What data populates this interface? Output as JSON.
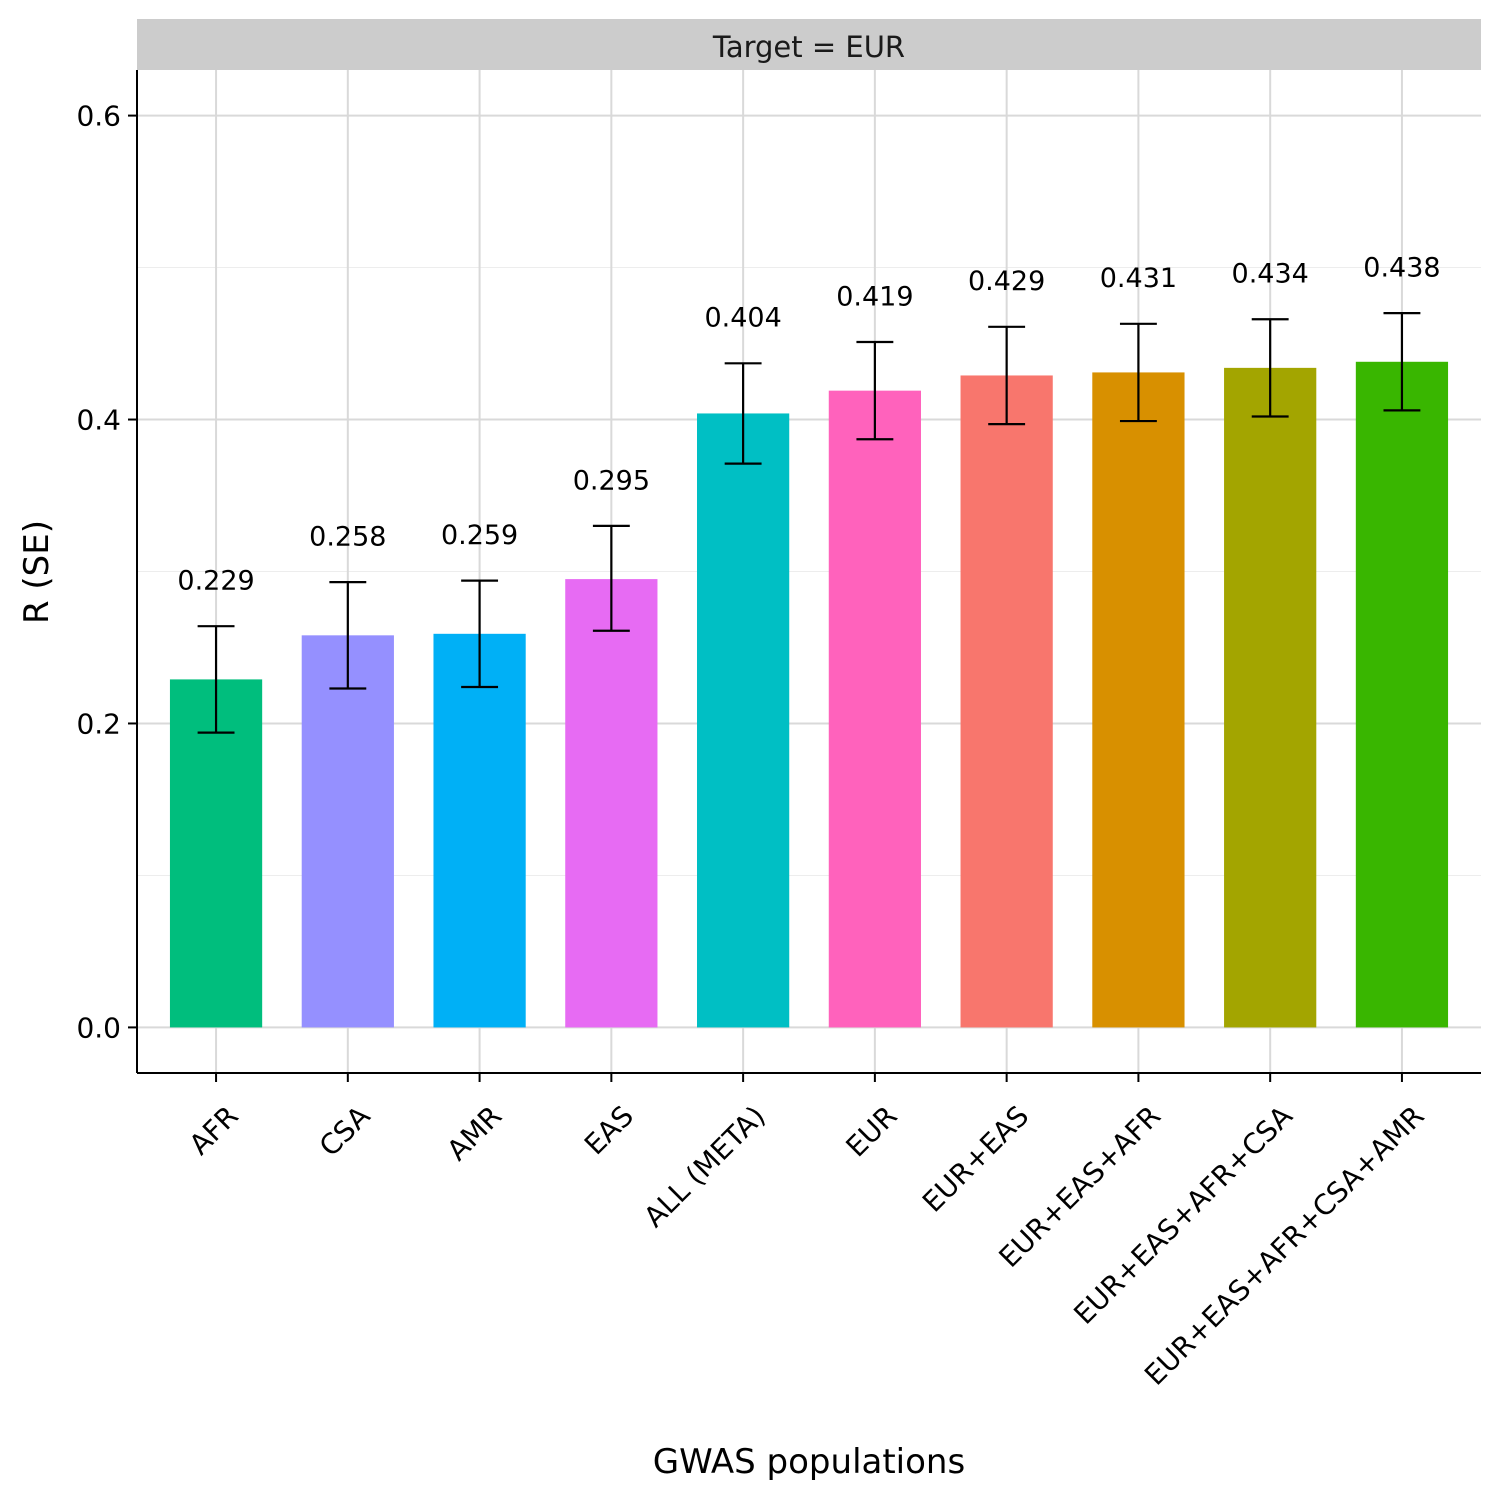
{
  "chart_data": {
    "type": "bar",
    "facet_label": "Target = EUR",
    "xlabel": "GWAS populations",
    "ylabel": "R (SE)",
    "ylim": [
      -0.03,
      0.63
    ],
    "y_ticks": [
      0.0,
      0.2,
      0.4,
      0.6
    ],
    "y_tick_labels": [
      "0.0",
      "0.2",
      "0.4",
      "0.6"
    ],
    "grid": true,
    "legend": "none",
    "categories": [
      "AFR",
      "CSA",
      "AMR",
      "EAS",
      "ALL (META)",
      "EUR",
      "EUR+EAS",
      "EUR+EAS+AFR",
      "EUR+EAS+AFR+CSA",
      "EUR+EAS+AFR+CSA+AMR"
    ],
    "values": [
      0.229,
      0.258,
      0.259,
      0.295,
      0.404,
      0.419,
      0.429,
      0.431,
      0.434,
      0.438
    ],
    "value_labels": [
      "0.229",
      "0.258",
      "0.259",
      "0.295",
      "0.404",
      "0.419",
      "0.429",
      "0.431",
      "0.434",
      "0.438"
    ],
    "error_low": [
      0.194,
      0.223,
      0.224,
      0.261,
      0.371,
      0.387,
      0.397,
      0.399,
      0.402,
      0.406
    ],
    "error_high": [
      0.264,
      0.293,
      0.294,
      0.33,
      0.437,
      0.451,
      0.461,
      0.463,
      0.466,
      0.47
    ],
    "colors": [
      "#00BE7D",
      "#9590FF",
      "#00B0F6",
      "#E76BF3",
      "#00BFC4",
      "#FF62BC",
      "#F8766D",
      "#D89000",
      "#A3A500",
      "#39B600"
    ]
  }
}
